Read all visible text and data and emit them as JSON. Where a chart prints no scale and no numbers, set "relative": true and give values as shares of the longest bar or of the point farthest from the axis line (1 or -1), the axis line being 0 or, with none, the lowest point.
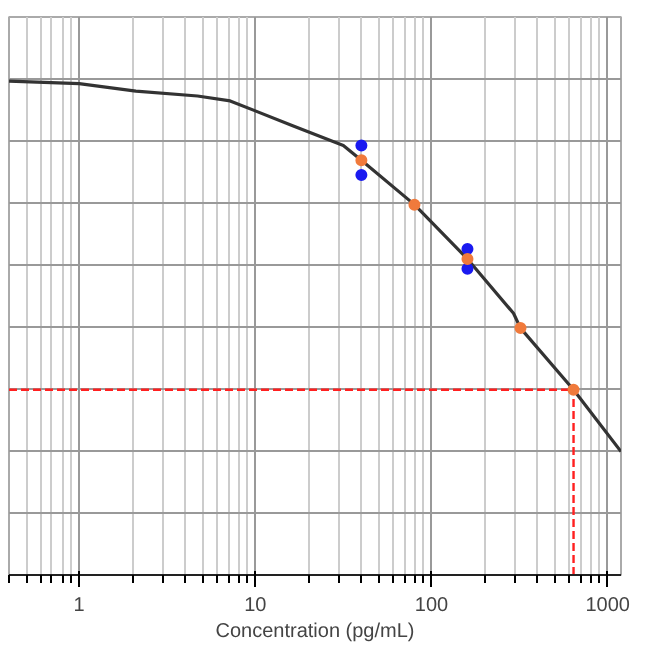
{
  "chart_data": {
    "type": "line",
    "xlabel": "Concentration (pg/mL)",
    "relative": true,
    "log": "x",
    "grid": true,
    "xlim": [
      0.4,
      1190
    ],
    "xticks": [
      1,
      10,
      100,
      1000
    ],
    "series": [
      {
        "color": "#333333",
        "x": [
          0.4,
          1,
          2.1,
          4.7,
          7.2,
          16.3,
          31.6,
          40,
          80,
          160,
          292,
          320,
          640,
          1190
        ],
        "values": [
          1.0,
          0.995,
          0.98,
          0.97,
          0.96,
          0.91,
          0.87,
          0.84,
          0.75,
          0.64,
          0.53,
          0.5,
          0.375,
          0.25
        ]
      },
      {
        "type": "scatter",
        "color": "#1a1af0",
        "marker": "circle",
        "x": [
          40,
          40,
          160,
          160
        ],
        "values": [
          0.87,
          0.81,
          0.66,
          0.62
        ]
      },
      {
        "type": "scatter",
        "color": "#f07a3c",
        "marker": "circle",
        "x": [
          40,
          80,
          160,
          320,
          640
        ],
        "values": [
          0.84,
          0.75,
          0.64,
          0.5,
          0.375
        ]
      }
    ],
    "ref_lines": [
      {
        "axis": "y",
        "value": 0.375,
        "color": "#ff2020",
        "line_style": "dashed"
      },
      {
        "axis": "x",
        "value": 640,
        "color": "#ff2020",
        "line_style": "dashed"
      }
    ]
  }
}
